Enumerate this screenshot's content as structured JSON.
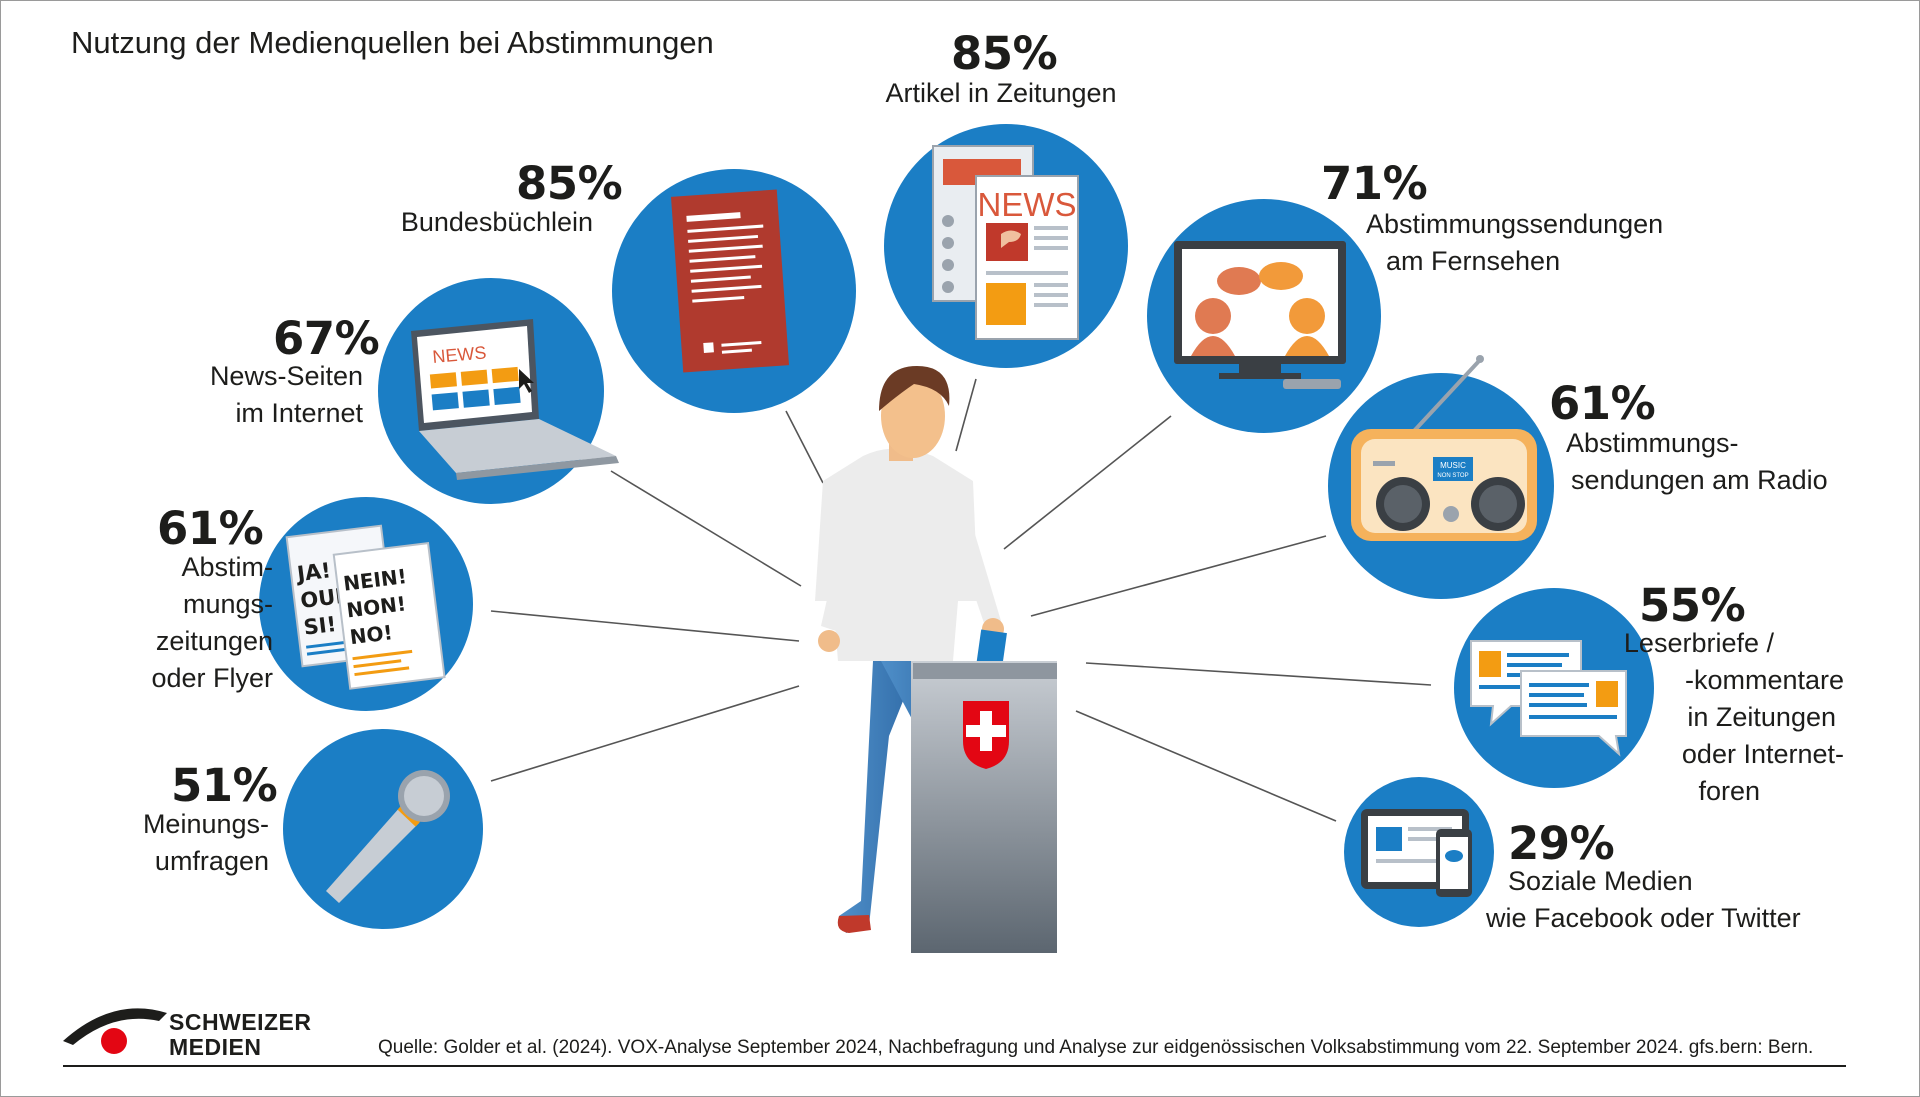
{
  "title": "Nutzung der Medienquellen bei Abstimmungen",
  "colors": {
    "circle": "#1b7ec5",
    "text": "#1d1d1b",
    "swiss_red": "#e30613"
  },
  "items": [
    {
      "id": "zeitungen",
      "pct": "85%",
      "label": [
        "Artikel in Zeitungen"
      ],
      "icon": "newspaper-icon"
    },
    {
      "id": "bundesbuechlein",
      "pct": "85%",
      "label": [
        "Bundesbüchlein"
      ],
      "icon": "booklet-icon"
    },
    {
      "id": "fernsehen",
      "pct": "71%",
      "label": [
        "Abstimmungssendungen",
        "am Fernsehen"
      ],
      "icon": "tv-icon"
    },
    {
      "id": "newsseiten",
      "pct": "67%",
      "label": [
        "News-Seiten",
        "im Internet"
      ],
      "icon": "laptop-icon"
    },
    {
      "id": "radio",
      "pct": "61%",
      "label": [
        "Abstimmungs-",
        "sendungen am Radio"
      ],
      "icon": "radio-icon"
    },
    {
      "id": "flyer",
      "pct": "61%",
      "label": [
        "Abstim-",
        "mungs-",
        "zeitungen",
        "oder Flyer"
      ],
      "icon": "flyer-icon"
    },
    {
      "id": "leserbriefe",
      "pct": "55%",
      "label": [
        "Leserbriefe /",
        "-kommentare",
        "in Zeitungen",
        "oder Internet-",
        "foren"
      ],
      "icon": "comments-icon"
    },
    {
      "id": "umfragen",
      "pct": "51%",
      "label": [
        "Meinungs-",
        "umfragen"
      ],
      "icon": "microphone-icon"
    },
    {
      "id": "soziale",
      "pct": "29%",
      "label": [
        "Soziale Medien",
        "wie Facebook oder Twitter"
      ],
      "icon": "social-media-icon"
    }
  ],
  "icon_texts": {
    "newspaper": "NEWS",
    "laptop": "NEWS",
    "flyer_left": [
      "JA!",
      "OUI!",
      "SI!"
    ],
    "flyer_right": [
      "NEIN!",
      "NON!",
      "NO!"
    ],
    "radio_display": [
      "MUSIC",
      "NON STOP"
    ]
  },
  "logo": {
    "line1": "SCHWEIZER",
    "line2": "MEDIEN"
  },
  "source": "Quelle: Golder et al. (2024). VOX-Analyse September 2024, Nachbefragung und Analyse zur eidgenössischen Volksabstimmung vom 22. September 2024. gfs.bern: Bern."
}
